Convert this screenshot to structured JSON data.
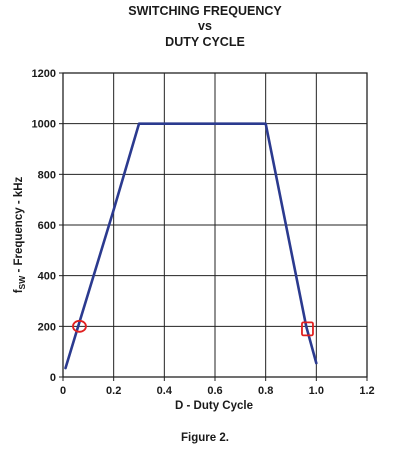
{
  "chart_data": {
    "type": "line",
    "title_lines": [
      "SWITCHING FREQUENCY",
      "vs",
      "DUTY CYCLE"
    ],
    "xlabel": "D - Duty Cycle",
    "ylabel_main": "f",
    "ylabel_sub": "SW",
    "ylabel_rest": " - Frequency - kHz",
    "xlim": [
      0,
      1.2
    ],
    "ylim": [
      0,
      1200
    ],
    "x_ticks": [
      0,
      0.2,
      0.4,
      0.6,
      0.8,
      1.0,
      1.2
    ],
    "x_tick_labels": [
      "0",
      "0.2",
      "0.4",
      "0.6",
      "0.8",
      "1.0",
      "1.2"
    ],
    "y_ticks": [
      0,
      200,
      400,
      600,
      800,
      1000,
      1200
    ],
    "y_tick_labels": [
      "0",
      "200",
      "400",
      "600",
      "800",
      "1000",
      "1200"
    ],
    "grid": true,
    "series": [
      {
        "color": "#2b3a8f",
        "x": [
          0.01,
          0.06,
          0.2,
          0.3,
          0.8,
          0.96,
          1.0
        ],
        "y": [
          35,
          200,
          660,
          1000,
          1000,
          200,
          55
        ]
      }
    ],
    "markers": [
      {
        "x": 0.065,
        "y": 200,
        "shape": "circle",
        "color": "#e02020"
      },
      {
        "x": 0.965,
        "y": 190,
        "shape": "square",
        "color": "#e02020"
      }
    ],
    "caption": "Figure 2."
  }
}
